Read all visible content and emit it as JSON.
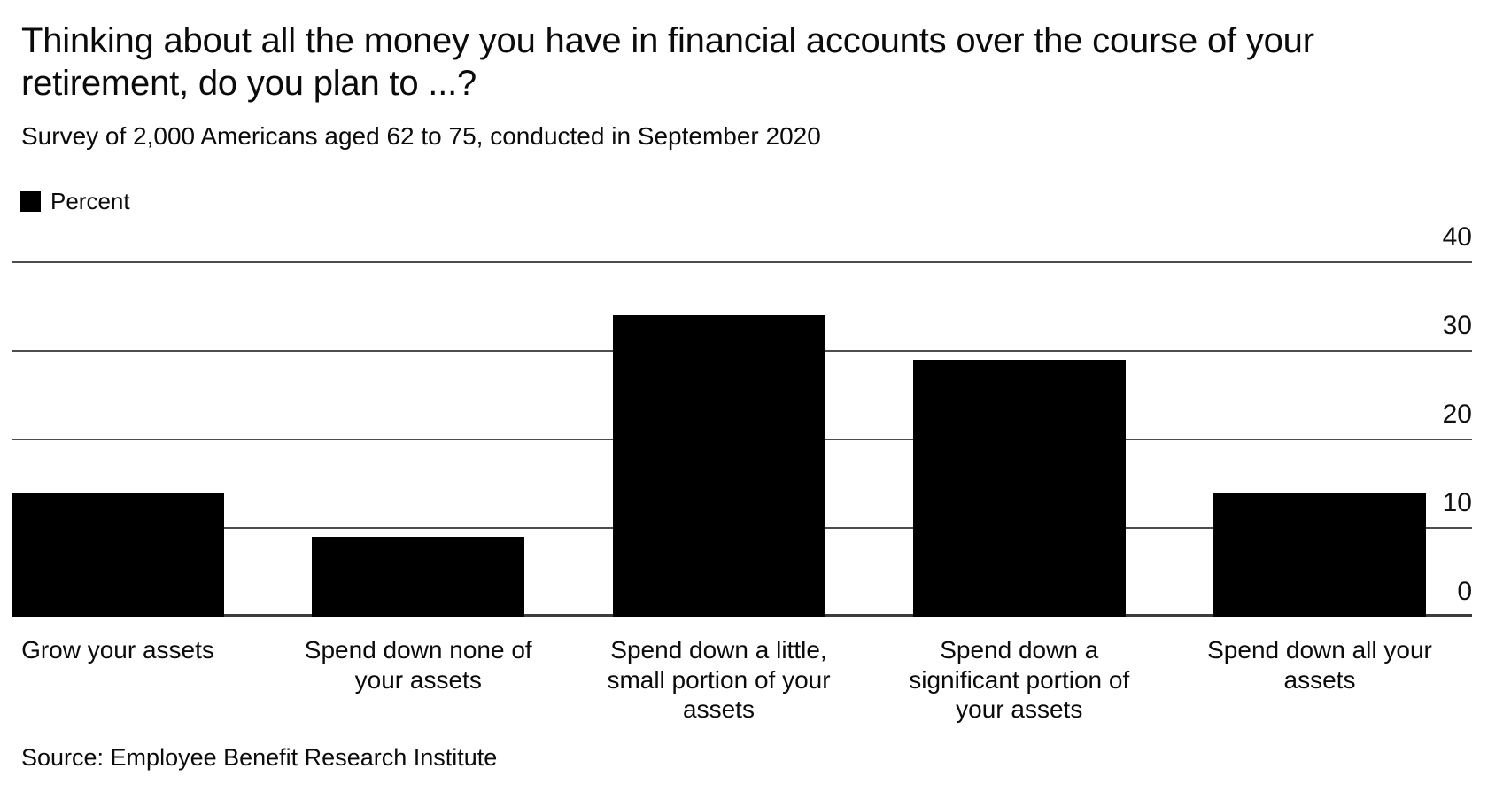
{
  "page": {
    "title": "Thinking about all the money you have in financial accounts over the course of your retirement, do you plan to ...?",
    "subtitle": "Survey of 2,000 Americans aged 62 to 75, conducted in September 2020",
    "source": "Source: Employee Benefit Research Institute"
  },
  "legend": {
    "label": "Percent",
    "swatch_color": "#000000"
  },
  "chart_data": {
    "type": "bar",
    "title": "Thinking about all the money you have in financial accounts over the course of your retirement, do you plan to ...?",
    "subtitle": "Survey of 2,000 Americans aged 62 to 75, conducted in September 2020",
    "source": "Source: Employee Benefit Research Institute",
    "categories": [
      "Grow your assets",
      "Spend down none of your assets",
      "Spend down a little, small portion of your assets",
      "Spend down a significant portion of your assets",
      "Spend down all your assets"
    ],
    "series": [
      {
        "name": "Percent",
        "values": [
          14,
          9,
          34,
          29,
          14
        ]
      }
    ],
    "xlabel": "",
    "ylabel": "Percent",
    "ylim": [
      0,
      40
    ],
    "y_ticks": [
      0,
      10,
      20,
      30,
      40
    ],
    "y_tick_side": "right",
    "grid": true,
    "bar_color": "#000000",
    "gridline_color": "#4d4d4d",
    "legend_position": "top-left"
  }
}
